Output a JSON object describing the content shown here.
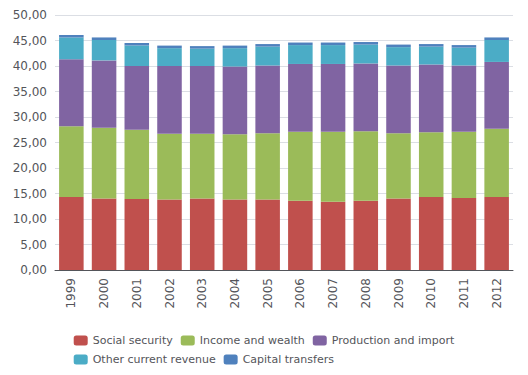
{
  "chart_data": {
    "type": "bar",
    "stacked": true,
    "grid": true,
    "legend": "bottom",
    "categories": [
      "1999",
      "2000",
      "2001",
      "2002",
      "2003",
      "2004",
      "2005",
      "2006",
      "2007",
      "2008",
      "2009",
      "2010",
      "2011",
      "2012"
    ],
    "series": [
      {
        "name": "Social security",
        "color": "#C0504D",
        "values": [
          14.3,
          14.0,
          13.9,
          13.8,
          14.0,
          13.8,
          13.8,
          13.6,
          13.4,
          13.6,
          14.0,
          14.3,
          14.1,
          14.3
        ]
      },
      {
        "name": "Income and wealth",
        "color": "#9BBB59",
        "values": [
          13.9,
          13.9,
          13.6,
          12.9,
          12.7,
          12.8,
          13.0,
          13.5,
          13.7,
          13.6,
          12.8,
          12.7,
          13.0,
          13.4
        ]
      },
      {
        "name": "Production and import",
        "color": "#8064A2",
        "values": [
          13.1,
          13.2,
          12.5,
          13.3,
          13.3,
          13.3,
          13.3,
          13.3,
          13.3,
          13.3,
          13.3,
          13.3,
          13.0,
          13.1
        ]
      },
      {
        "name": "Other current revenue",
        "color": "#4BACC6",
        "values": [
          4.3,
          4.0,
          4.0,
          3.5,
          3.4,
          3.6,
          3.7,
          3.7,
          3.7,
          3.7,
          3.6,
          3.5,
          3.5,
          4.3
        ]
      },
      {
        "name": "Capital transfers",
        "color": "#4F81BD",
        "values": [
          0.5,
          0.5,
          0.5,
          0.5,
          0.5,
          0.5,
          0.5,
          0.5,
          0.5,
          0.5,
          0.5,
          0.5,
          0.5,
          0.5
        ]
      }
    ],
    "ylim": [
      0,
      50
    ],
    "yticks": [
      {
        "value": 0,
        "label": "0,00"
      },
      {
        "value": 5,
        "label": "5,00"
      },
      {
        "value": 10,
        "label": "10,00"
      },
      {
        "value": 15,
        "label": "15,00"
      },
      {
        "value": 20,
        "label": "20,00"
      },
      {
        "value": 25,
        "label": "25,00"
      },
      {
        "value": 30,
        "label": "30,00"
      },
      {
        "value": 35,
        "label": "35,00"
      },
      {
        "value": 40,
        "label": "40,00"
      },
      {
        "value": 45,
        "label": "45,00"
      },
      {
        "value": 50,
        "label": "50,00"
      }
    ]
  }
}
